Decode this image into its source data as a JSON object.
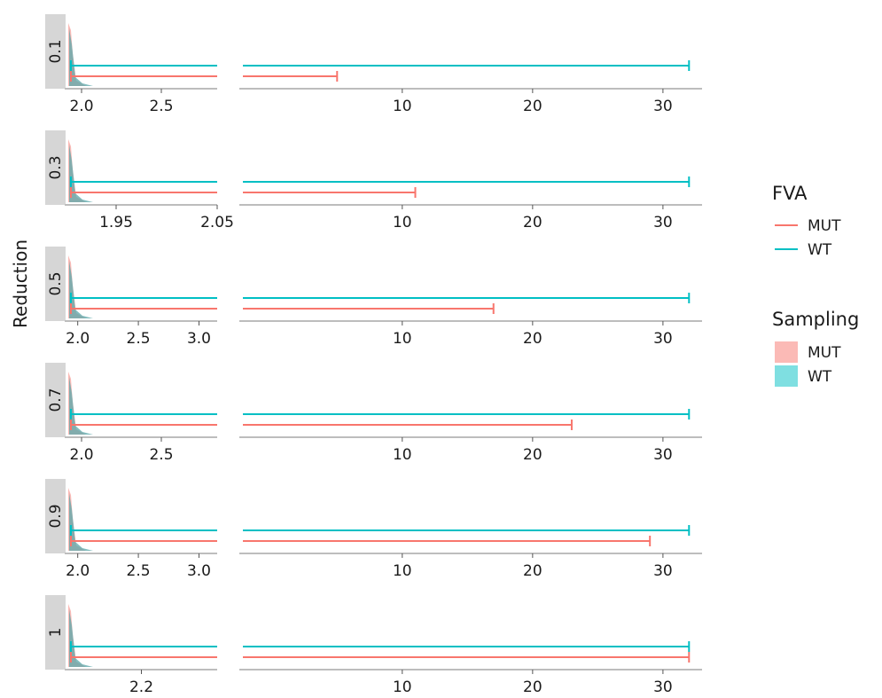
{
  "chart_data": {
    "type": "line",
    "ylabel": "Reduction",
    "legend_placement": "right",
    "grid": false,
    "colors": {
      "MUT": "#F8766D",
      "WT": "#00BFC4"
    },
    "legends": [
      {
        "title": "FVA",
        "kind": "line",
        "entries": [
          "MUT",
          "WT"
        ]
      },
      {
        "title": "Sampling",
        "kind": "fill",
        "entries": [
          "MUT",
          "WT"
        ]
      }
    ],
    "right_xticks": [
      "10",
      "20",
      "30"
    ],
    "right_xlim": [
      -2.5,
      33
    ],
    "panels": [
      {
        "reduction": "0.1",
        "left_xlim": [
          1.9,
          2.85
        ],
        "left_ticks": [
          {
            "v": 2.0,
            "t": "2.0"
          },
          {
            "v": 2.5,
            "t": "2.5"
          }
        ],
        "fva": {
          "WT": 32,
          "MUT": 5
        }
      },
      {
        "reduction": "0.3",
        "left_xlim": [
          1.9,
          2.05
        ],
        "left_ticks": [
          {
            "v": 1.95,
            "t": "1.95"
          },
          {
            "v": 2.05,
            "t": "2.05"
          }
        ],
        "fva": {
          "WT": 32,
          "MUT": 11
        }
      },
      {
        "reduction": "0.5",
        "left_xlim": [
          1.9,
          3.15
        ],
        "left_ticks": [
          {
            "v": 2.0,
            "t": "2.0"
          },
          {
            "v": 2.5,
            "t": "2.5"
          },
          {
            "v": 3.0,
            "t": "3.0"
          }
        ],
        "fva": {
          "WT": 32,
          "MUT": 17
        }
      },
      {
        "reduction": "0.7",
        "left_xlim": [
          1.9,
          2.85
        ],
        "left_ticks": [
          {
            "v": 2.0,
            "t": "2.0"
          },
          {
            "v": 2.5,
            "t": "2.5"
          }
        ],
        "fva": {
          "WT": 32,
          "MUT": 23
        }
      },
      {
        "reduction": "0.9",
        "left_xlim": [
          1.9,
          3.15
        ],
        "left_ticks": [
          {
            "v": 2.0,
            "t": "2.0"
          },
          {
            "v": 2.5,
            "t": "2.5"
          },
          {
            "v": 3.0,
            "t": "3.0"
          }
        ],
        "fva": {
          "WT": 32,
          "MUT": 29
        }
      },
      {
        "reduction": "1",
        "left_xlim": [
          2.05,
          2.35
        ],
        "left_ticks": [
          {
            "v": 2.2,
            "t": "2.2"
          }
        ],
        "fva": {
          "WT": 32,
          "MUT": 32
        }
      }
    ]
  }
}
